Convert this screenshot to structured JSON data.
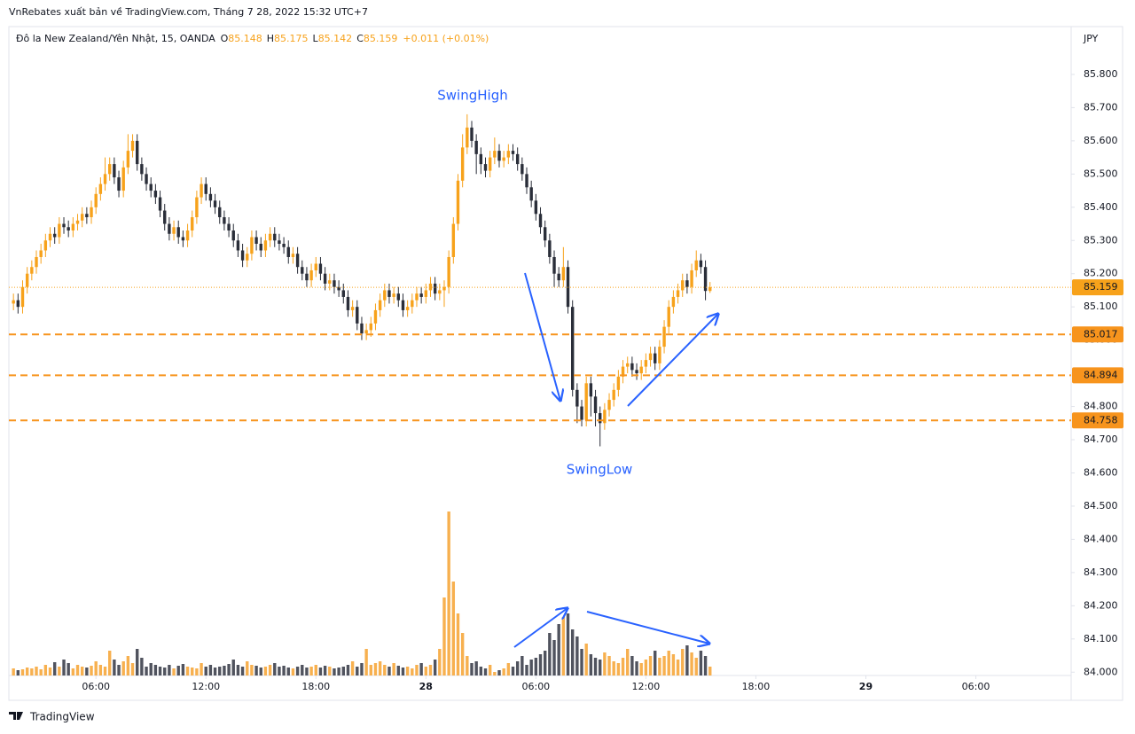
{
  "header": {
    "publisher_line": "VnRebates xuất bản về TradingView.com, Tháng 7 28, 2022 15:32 UTC+7",
    "symbol": "Đô la New Zealand/Yên Nhật, 15, OANDA",
    "ohlc_labels": [
      "O",
      "H",
      "L",
      "C"
    ],
    "change": "+0.011 (+0.01%)",
    "brand": "TradingView"
  },
  "chart_data": {
    "type": "candlestick",
    "currency": "JPY",
    "annotations": [
      "SwingHigh",
      "SwingLow"
    ],
    "up_color": "#f7a21b",
    "down_color": "#2a2e39",
    "volume_up_color": "#f7b04f",
    "volume_down_color": "#50535e",
    "level_color": "#f7941d",
    "x": [
      1.5,
      1.75,
      2,
      2.25,
      2.5,
      2.75,
      3,
      3.25,
      3.5,
      3.75,
      4,
      4.25,
      4.5,
      4.75,
      5,
      5.25,
      5.5,
      5.75,
      6,
      6.25,
      6.5,
      6.75,
      7,
      7.25,
      7.5,
      7.75,
      8,
      8.25,
      8.5,
      8.75,
      9,
      9.25,
      9.5,
      9.75,
      10,
      10.25,
      10.5,
      10.75,
      11,
      11.25,
      11.5,
      11.75,
      12,
      12.25,
      12.5,
      12.75,
      13,
      13.25,
      13.5,
      13.75,
      14,
      14.25,
      14.5,
      14.75,
      15,
      15.25,
      15.5,
      15.75,
      16,
      16.25,
      16.5,
      16.75,
      17,
      17.25,
      17.5,
      17.75,
      18,
      18.25,
      18.5,
      18.75,
      19,
      19.25,
      19.5,
      19.75,
      20,
      20.25,
      20.5,
      20.75,
      21,
      21.25,
      21.5,
      21.75,
      22,
      22.25,
      22.5,
      22.75,
      23,
      23.25,
      23.5,
      23.75,
      24,
      24.25,
      24.5,
      24.75,
      25,
      25.25,
      25.5,
      25.75,
      26,
      26.25,
      26.5,
      26.75,
      27,
      27.25,
      27.5,
      27.75,
      28,
      28.25,
      28.5,
      28.75,
      29,
      29.25,
      29.5,
      29.75,
      30,
      30.25,
      30.5,
      30.75,
      31,
      31.25,
      31.5,
      31.75,
      32,
      32.25,
      32.5,
      32.75,
      33,
      33.25,
      33.5,
      33.75,
      34,
      34.25,
      34.5,
      34.75,
      35,
      35.25,
      35.5,
      35.75,
      36,
      36.25,
      36.5,
      36.75,
      37,
      37.25,
      37.5,
      37.75,
      38,
      38.25,
      38.5,
      38.75,
      39,
      39.25,
      39.5
    ],
    "open": [
      85.11,
      85.12,
      85.1,
      85.16,
      85.2,
      85.22,
      85.25,
      85.27,
      85.3,
      85.32,
      85.31,
      85.35,
      85.34,
      85.33,
      85.35,
      85.36,
      85.38,
      85.37,
      85.4,
      85.44,
      85.47,
      85.5,
      85.53,
      85.49,
      85.45,
      85.52,
      85.57,
      85.6,
      85.53,
      85.5,
      85.47,
      85.45,
      85.43,
      85.39,
      85.35,
      85.32,
      85.34,
      85.31,
      85.3,
      85.33,
      85.37,
      85.43,
      85.47,
      85.44,
      85.42,
      85.4,
      85.37,
      85.35,
      85.33,
      85.3,
      85.27,
      85.24,
      85.26,
      85.31,
      85.29,
      85.27,
      85.3,
      85.32,
      85.3,
      85.29,
      85.28,
      85.25,
      85.26,
      85.22,
      85.2,
      85.18,
      85.21,
      85.23,
      85.2,
      85.17,
      85.18,
      85.16,
      85.15,
      85.13,
      85.09,
      85.1,
      85.05,
      85.02,
      85.03,
      85.05,
      85.09,
      85.12,
      85.15,
      85.13,
      85.14,
      85.12,
      85.09,
      85.1,
      85.12,
      85.14,
      85.13,
      85.15,
      85.17,
      85.14,
      85.15,
      85.16,
      85.25,
      85.35,
      85.48,
      85.58,
      85.64,
      85.6,
      85.56,
      85.53,
      85.51,
      85.55,
      85.57,
      85.54,
      85.55,
      85.57,
      85.56,
      85.53,
      85.5,
      85.46,
      85.42,
      85.38,
      85.34,
      85.3,
      85.25,
      85.2,
      85.18,
      85.22,
      85.1,
      84.85,
      84.8,
      84.76,
      84.87,
      84.83,
      84.78,
      84.75,
      84.79,
      84.82,
      84.85,
      84.89,
      84.92,
      84.93,
      84.91,
      84.9,
      84.92,
      84.94,
      84.96,
      84.93,
      84.98,
      85.04,
      85.1,
      85.13,
      85.15,
      85.18,
      85.16,
      85.21,
      85.24,
      85.22,
      85.148
    ],
    "high": [
      85.14,
      85.14,
      85.18,
      85.22,
      85.24,
      85.27,
      85.29,
      85.32,
      85.34,
      85.34,
      85.37,
      85.37,
      85.36,
      85.37,
      85.38,
      85.4,
      85.4,
      85.42,
      85.46,
      85.49,
      85.55,
      85.55,
      85.55,
      85.51,
      85.54,
      85.62,
      85.62,
      85.62,
      85.55,
      85.52,
      85.49,
      85.47,
      85.45,
      85.41,
      85.37,
      85.36,
      85.36,
      85.33,
      85.35,
      85.39,
      85.45,
      85.49,
      85.49,
      85.46,
      85.44,
      85.42,
      85.39,
      85.37,
      85.35,
      85.32,
      85.29,
      85.28,
      85.33,
      85.33,
      85.31,
      85.32,
      85.34,
      85.34,
      85.32,
      85.31,
      85.3,
      85.28,
      85.28,
      85.24,
      85.22,
      85.23,
      85.25,
      85.25,
      85.22,
      85.2,
      85.2,
      85.18,
      85.17,
      85.15,
      85.12,
      85.12,
      85.07,
      85.05,
      85.07,
      85.11,
      85.14,
      85.17,
      85.17,
      85.16,
      85.16,
      85.14,
      85.12,
      85.14,
      85.16,
      85.16,
      85.17,
      85.19,
      85.19,
      85.17,
      85.18,
      85.27,
      85.37,
      85.5,
      85.62,
      85.68,
      85.66,
      85.62,
      85.58,
      85.55,
      85.57,
      85.61,
      85.59,
      85.57,
      85.59,
      85.59,
      85.58,
      85.55,
      85.52,
      85.48,
      85.44,
      85.4,
      85.36,
      85.32,
      85.27,
      85.22,
      85.28,
      85.24,
      85.12,
      84.87,
      84.82,
      84.89,
      84.89,
      84.85,
      84.8,
      84.81,
      84.84,
      84.87,
      84.91,
      84.94,
      84.95,
      84.95,
      84.93,
      84.94,
      84.96,
      84.98,
      84.98,
      85.0,
      85.06,
      85.12,
      85.15,
      85.17,
      85.2,
      85.2,
      85.23,
      85.27,
      85.26,
      85.24,
      85.175
    ],
    "low": [
      85.09,
      85.08,
      85.08,
      85.14,
      85.18,
      85.2,
      85.23,
      85.25,
      85.28,
      85.29,
      85.29,
      85.32,
      85.31,
      85.31,
      85.33,
      85.34,
      85.35,
      85.35,
      85.38,
      85.42,
      85.45,
      85.48,
      85.47,
      85.43,
      85.43,
      85.5,
      85.55,
      85.51,
      85.48,
      85.45,
      85.43,
      85.41,
      85.37,
      85.33,
      85.3,
      85.3,
      85.29,
      85.28,
      85.28,
      85.31,
      85.35,
      85.41,
      85.42,
      85.4,
      85.38,
      85.35,
      85.33,
      85.31,
      85.28,
      85.25,
      85.22,
      85.22,
      85.24,
      85.27,
      85.25,
      85.25,
      85.28,
      85.28,
      85.27,
      85.26,
      85.23,
      85.23,
      85.2,
      85.18,
      85.16,
      85.16,
      85.19,
      85.18,
      85.15,
      85.15,
      85.14,
      85.13,
      85.11,
      85.07,
      85.07,
      85.03,
      85.0,
      85.0,
      85.01,
      85.03,
      85.07,
      85.1,
      85.11,
      85.11,
      85.1,
      85.07,
      85.07,
      85.08,
      85.1,
      85.11,
      85.11,
      85.13,
      85.12,
      85.12,
      85.1,
      85.14,
      85.23,
      85.33,
      85.46,
      85.56,
      85.58,
      85.5,
      85.5,
      85.49,
      85.49,
      85.53,
      85.52,
      85.52,
      85.53,
      85.54,
      85.51,
      85.48,
      85.44,
      85.4,
      85.36,
      85.32,
      85.28,
      85.23,
      85.16,
      85.16,
      85.16,
      85.08,
      84.83,
      84.75,
      84.74,
      84.74,
      84.77,
      84.74,
      84.68,
      84.73,
      84.77,
      84.8,
      84.83,
      84.87,
      84.9,
      84.89,
      84.88,
      84.88,
      84.9,
      84.92,
      84.91,
      84.91,
      84.96,
      85.02,
      85.08,
      85.11,
      85.13,
      85.14,
      85.14,
      85.19,
      85.2,
      85.12,
      85.142
    ],
    "close": [
      85.12,
      85.1,
      85.16,
      85.2,
      85.22,
      85.25,
      85.27,
      85.3,
      85.32,
      85.31,
      85.35,
      85.34,
      85.33,
      85.35,
      85.36,
      85.38,
      85.37,
      85.4,
      85.44,
      85.47,
      85.5,
      85.53,
      85.49,
      85.45,
      85.52,
      85.57,
      85.6,
      85.53,
      85.5,
      85.47,
      85.45,
      85.43,
      85.39,
      85.35,
      85.32,
      85.34,
      85.31,
      85.3,
      85.33,
      85.37,
      85.43,
      85.47,
      85.44,
      85.42,
      85.4,
      85.37,
      85.35,
      85.33,
      85.3,
      85.27,
      85.24,
      85.26,
      85.31,
      85.29,
      85.27,
      85.3,
      85.32,
      85.3,
      85.29,
      85.28,
      85.25,
      85.26,
      85.22,
      85.2,
      85.18,
      85.21,
      85.23,
      85.2,
      85.17,
      85.18,
      85.16,
      85.15,
      85.13,
      85.09,
      85.1,
      85.05,
      85.02,
      85.03,
      85.05,
      85.09,
      85.12,
      85.15,
      85.13,
      85.14,
      85.12,
      85.09,
      85.1,
      85.12,
      85.14,
      85.13,
      85.15,
      85.17,
      85.14,
      85.15,
      85.16,
      85.25,
      85.35,
      85.48,
      85.58,
      85.64,
      85.6,
      85.56,
      85.53,
      85.51,
      85.55,
      85.57,
      85.54,
      85.55,
      85.57,
      85.56,
      85.53,
      85.5,
      85.46,
      85.42,
      85.38,
      85.34,
      85.3,
      85.25,
      85.2,
      85.18,
      85.22,
      85.1,
      84.85,
      84.8,
      84.76,
      84.87,
      84.83,
      84.78,
      84.75,
      84.79,
      84.82,
      84.85,
      84.89,
      84.92,
      84.93,
      84.91,
      84.9,
      84.92,
      84.94,
      84.96,
      84.93,
      84.98,
      85.04,
      85.1,
      85.13,
      85.15,
      85.18,
      85.16,
      85.21,
      85.24,
      85.22,
      85.148,
      85.159
    ],
    "volume": [
      8,
      6,
      7,
      9,
      8,
      10,
      7,
      12,
      9,
      15,
      10,
      18,
      14,
      8,
      12,
      10,
      9,
      11,
      16,
      12,
      10,
      28,
      18,
      12,
      16,
      22,
      14,
      30,
      20,
      10,
      14,
      12,
      10,
      9,
      12,
      8,
      11,
      13,
      10,
      9,
      8,
      14,
      10,
      12,
      9,
      10,
      11,
      13,
      18,
      12,
      10,
      16,
      12,
      11,
      9,
      10,
      12,
      14,
      10,
      11,
      9,
      8,
      10,
      12,
      9,
      10,
      12,
      9,
      11,
      10,
      8,
      9,
      10,
      12,
      16,
      10,
      14,
      30,
      12,
      14,
      16,
      12,
      10,
      14,
      11,
      9,
      10,
      8,
      12,
      14,
      10,
      12,
      18,
      30,
      88,
      185,
      106,
      70,
      48,
      22,
      14,
      16,
      10,
      8,
      12,
      4,
      6,
      8,
      14,
      10,
      16,
      22,
      12,
      18,
      20,
      24,
      28,
      48,
      40,
      58,
      66,
      70,
      52,
      44,
      30,
      36,
      24,
      20,
      18,
      26,
      22,
      16,
      14,
      20,
      30,
      22,
      16,
      14,
      18,
      22,
      28,
      20,
      22,
      28,
      24,
      18,
      30,
      34,
      26,
      20,
      28,
      22,
      10
    ],
    "levels": [
      85.017,
      84.894,
      84.758
    ],
    "xlim": [
      1.25,
      59.2
    ],
    "xticks": [
      {
        "value": 6,
        "label": "06:00"
      },
      {
        "value": 12,
        "label": "12:00"
      },
      {
        "value": 18,
        "label": "18:00"
      },
      {
        "value": 24,
        "label": "28"
      },
      {
        "value": 30,
        "label": "06:00"
      },
      {
        "value": 36,
        "label": "12:00"
      },
      {
        "value": 42,
        "label": "18:00"
      },
      {
        "value": 48,
        "label": "29"
      },
      {
        "value": 54,
        "label": "06:00"
      }
    ],
    "ylim": [
      83.99,
      85.944
    ],
    "yticks": [
      {
        "value": 84.0,
        "label": "84.000"
      },
      {
        "value": 84.1,
        "label": "84.100"
      },
      {
        "value": 84.2,
        "label": "84.200"
      },
      {
        "value": 84.3,
        "label": "84.300"
      },
      {
        "value": 84.4,
        "label": "84.400"
      },
      {
        "value": 84.5,
        "label": "84.500"
      },
      {
        "value": 84.6,
        "label": "84.600"
      },
      {
        "value": 84.7,
        "label": "84.700"
      },
      {
        "value": 84.8,
        "label": "84.800"
      },
      {
        "value": 84.9,
        "label": "84.900"
      },
      {
        "value": 85.0,
        "label": "85.000"
      },
      {
        "value": 85.1,
        "label": "85.100"
      },
      {
        "value": 85.2,
        "label": "85.200"
      },
      {
        "value": 85.3,
        "label": "85.300"
      },
      {
        "value": 85.4,
        "label": "85.400"
      },
      {
        "value": 85.5,
        "label": "85.500"
      },
      {
        "value": 85.6,
        "label": "85.600"
      },
      {
        "value": 85.7,
        "label": "85.700"
      },
      {
        "value": 85.8,
        "label": "85.800"
      }
    ]
  }
}
